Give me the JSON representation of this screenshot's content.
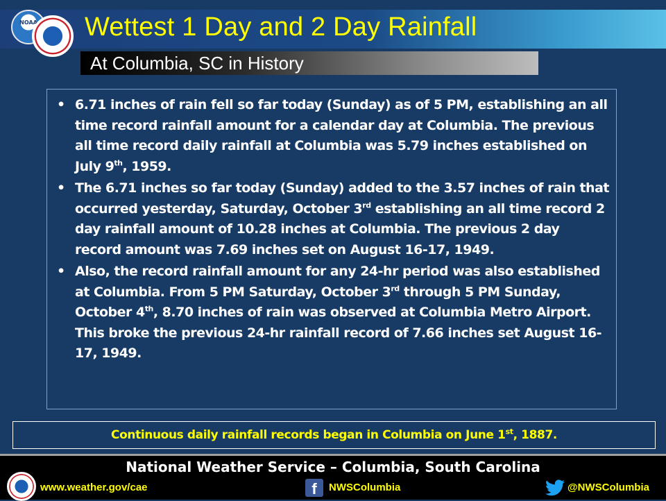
{
  "header": {
    "title": "Wettest 1 Day and 2 Day Rainfall",
    "subtitle": "At Columbia, SC in History",
    "noaa_logo_text": "NOAA"
  },
  "bullets": [
    {
      "id": "b1",
      "parts": [
        {
          "t": "6.71 inches of rain fell so far today (Sunday) as of 5 PM, establishing an all time record rainfall amount for a calendar day at Columbia. The previous all time record daily rainfall at Columbia was 5.79 inches established on July 9"
        },
        {
          "t": "th",
          "sup": true
        },
        {
          "t": ", 1959."
        }
      ]
    },
    {
      "id": "b2",
      "parts": [
        {
          "t": "The 6.71 inches so far today (Sunday) added to the 3.57 inches of rain that occurred yesterday, Saturday, October 3"
        },
        {
          "t": "rd",
          "sup": true
        },
        {
          "t": " establishing an all time record 2  day rainfall amount of 10.28 inches at Columbia. The previous 2 day record amount was 7.69 inches set on August 16-17, 1949."
        }
      ]
    },
    {
      "id": "b3",
      "parts": [
        {
          "t": "Also, the record rainfall amount for any 24-hr period was also established at Columbia. From 5 PM Saturday, October 3"
        },
        {
          "t": "rd",
          "sup": true
        },
        {
          "t": " through 5 PM Sunday, October 4"
        },
        {
          "t": "th",
          "sup": true
        },
        {
          "t": ", 8.70 inches of rain was observed at Columbia Metro Airport. This broke the previous 24-hr rainfall record of 7.66 inches set August 16-17, 1949."
        }
      ]
    }
  ],
  "note": {
    "pre": "Continuous daily rainfall records began in Columbia on June 1",
    "sup": "st",
    "post": ", 1887."
  },
  "footer": {
    "title": "National Weather Service – Columbia, South Carolina",
    "website": "www.weather.gov/cae",
    "facebook": "NWSColumbia",
    "twitter": "@NWSColumbia"
  },
  "colors": {
    "background": "#173b64",
    "title": "#ffff00",
    "body_text": "#ffffff",
    "note_text": "#ffff00",
    "footer_bg": "#000000"
  },
  "icons": [
    "noaa-logo",
    "nws-logo",
    "facebook-icon",
    "twitter-icon"
  ]
}
